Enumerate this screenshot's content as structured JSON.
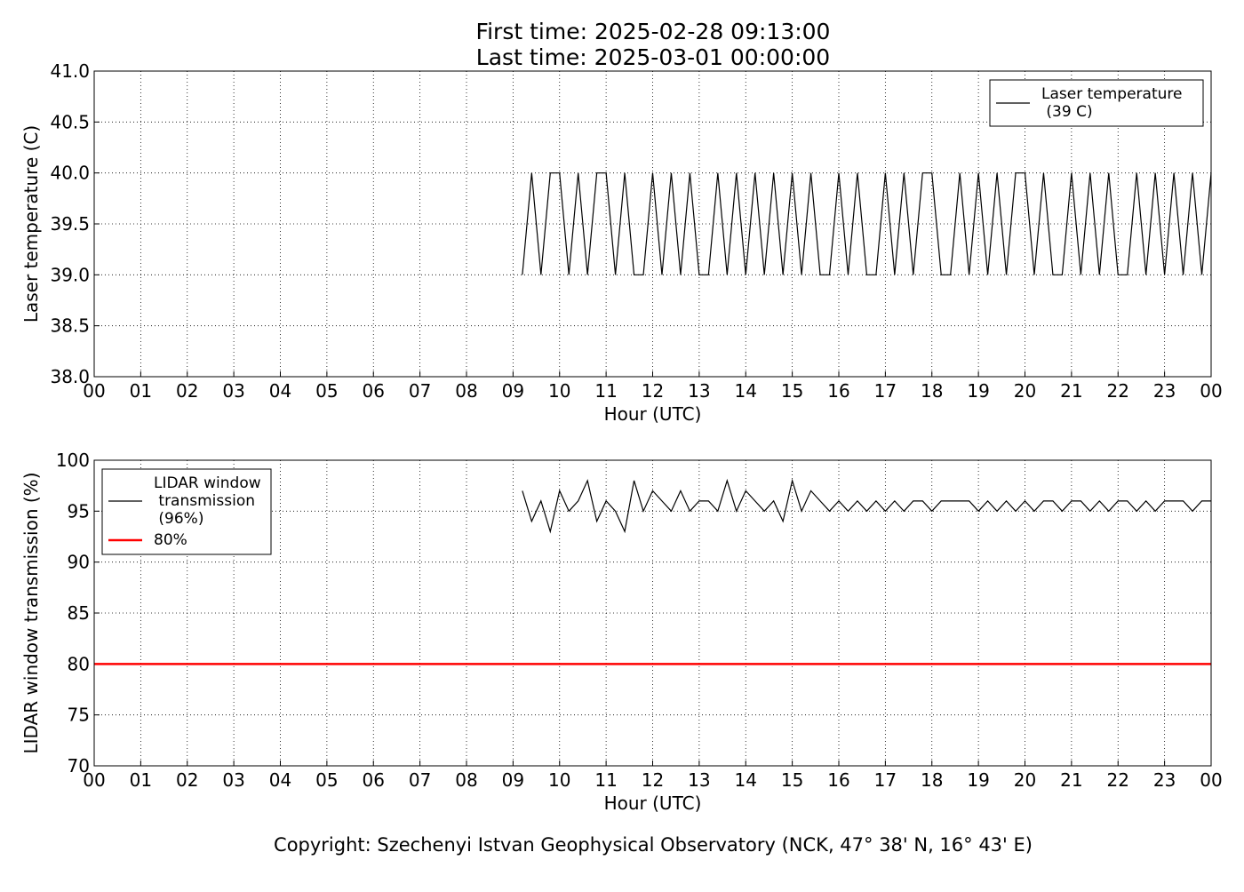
{
  "chart_data": [
    {
      "type": "line",
      "title": "First time: 2025-02-28 09:13:00",
      "subtitle": "Last time: 2025-03-01 00:00:00",
      "ylabel": "Laser temperature (C)",
      "xlabel": "Hour (UTC)",
      "xlim": [
        0,
        24
      ],
      "xticks": [
        {
          "value": 0,
          "label": "00"
        },
        {
          "value": 1,
          "label": "01"
        },
        {
          "value": 2,
          "label": "02"
        },
        {
          "value": 3,
          "label": "03"
        },
        {
          "value": 4,
          "label": "04"
        },
        {
          "value": 5,
          "label": "05"
        },
        {
          "value": 6,
          "label": "06"
        },
        {
          "value": 7,
          "label": "07"
        },
        {
          "value": 8,
          "label": "08"
        },
        {
          "value": 9,
          "label": "09"
        },
        {
          "value": 10,
          "label": "10"
        },
        {
          "value": 11,
          "label": "11"
        },
        {
          "value": 12,
          "label": "12"
        },
        {
          "value": 13,
          "label": "13"
        },
        {
          "value": 14,
          "label": "14"
        },
        {
          "value": 15,
          "label": "15"
        },
        {
          "value": 16,
          "label": "16"
        },
        {
          "value": 17,
          "label": "17"
        },
        {
          "value": 18,
          "label": "18"
        },
        {
          "value": 19,
          "label": "19"
        },
        {
          "value": 20,
          "label": "20"
        },
        {
          "value": 21,
          "label": "21"
        },
        {
          "value": 22,
          "label": "22"
        },
        {
          "value": 23,
          "label": "23"
        },
        {
          "value": 24,
          "label": "00"
        }
      ],
      "ylim": [
        38,
        41
      ],
      "yticks": [
        {
          "value": 38,
          "label": "38.0"
        },
        38.5,
        {
          "value": 39,
          "label": "39.0"
        },
        39.5,
        {
          "value": 40,
          "label": "40.0"
        },
        40.5,
        {
          "value": 41,
          "label": "41.0"
        }
      ],
      "grid": true,
      "legend": "upper right",
      "series": [
        {
          "name": "Laser temperature\n(39 C)",
          "color": "#000000",
          "x": [
            9.2,
            9.4,
            9.6,
            9.8,
            10,
            10.2,
            10.4,
            10.6,
            10.8,
            11,
            11.2,
            11.4,
            11.6,
            11.8,
            12,
            12.2,
            12.4,
            12.6,
            12.8,
            13,
            13.2,
            13.4,
            13.6,
            13.8,
            14,
            14.2,
            14.4,
            14.6,
            14.8,
            15,
            15.2,
            15.4,
            15.6,
            15.8,
            16,
            16.2,
            16.4,
            16.6,
            16.8,
            17,
            17.2,
            17.4,
            17.6,
            17.8,
            18,
            18.2,
            18.4,
            18.6,
            18.8,
            19,
            19.2,
            19.4,
            19.6,
            19.8,
            20,
            20.2,
            20.4,
            20.6,
            20.8,
            21,
            21.2,
            21.4,
            21.6,
            21.8,
            22,
            22.2,
            22.4,
            22.6,
            22.8,
            23,
            23.2,
            23.4,
            23.6,
            23.8,
            24
          ],
          "values": [
            39,
            40,
            39,
            40,
            40,
            39,
            40,
            39,
            40,
            40,
            39,
            40,
            39,
            39,
            40,
            39,
            40,
            39,
            40,
            39,
            39,
            40,
            39,
            40,
            39,
            40,
            39,
            40,
            39,
            40,
            39,
            40,
            39,
            39,
            40,
            39,
            40,
            39,
            39,
            40,
            39,
            40,
            39,
            40,
            40,
            39,
            39,
            40,
            39,
            40,
            39,
            40,
            39,
            40,
            40,
            39,
            40,
            39,
            39,
            40,
            39,
            40,
            39,
            40,
            39,
            39,
            40,
            39,
            40,
            39,
            40,
            39,
            40,
            39,
            40
          ]
        }
      ]
    },
    {
      "type": "line",
      "ylabel": "LIDAR window transmission (%)",
      "xlabel": "Hour (UTC)",
      "xlim": [
        0,
        24
      ],
      "xticks": [
        {
          "value": 0,
          "label": "00"
        },
        {
          "value": 1,
          "label": "01"
        },
        {
          "value": 2,
          "label": "02"
        },
        {
          "value": 3,
          "label": "03"
        },
        {
          "value": 4,
          "label": "04"
        },
        {
          "value": 5,
          "label": "05"
        },
        {
          "value": 6,
          "label": "06"
        },
        {
          "value": 7,
          "label": "07"
        },
        {
          "value": 8,
          "label": "08"
        },
        {
          "value": 9,
          "label": "09"
        },
        {
          "value": 10,
          "label": "10"
        },
        {
          "value": 11,
          "label": "11"
        },
        {
          "value": 12,
          "label": "12"
        },
        {
          "value": 13,
          "label": "13"
        },
        {
          "value": 14,
          "label": "14"
        },
        {
          "value": 15,
          "label": "15"
        },
        {
          "value": 16,
          "label": "16"
        },
        {
          "value": 17,
          "label": "17"
        },
        {
          "value": 18,
          "label": "18"
        },
        {
          "value": 19,
          "label": "19"
        },
        {
          "value": 20,
          "label": "20"
        },
        {
          "value": 21,
          "label": "21"
        },
        {
          "value": 22,
          "label": "22"
        },
        {
          "value": 23,
          "label": "23"
        },
        {
          "value": 24,
          "label": "00"
        }
      ],
      "ylim": [
        70,
        100
      ],
      "yticks": [
        70,
        75,
        80,
        85,
        90,
        95,
        100
      ],
      "grid": true,
      "legend": "upper left",
      "series": [
        {
          "name": "LIDAR window\ntransmission\n(96%)",
          "color": "#000000",
          "x": [
            9.2,
            9.4,
            9.6,
            9.8,
            10,
            10.2,
            10.4,
            10.6,
            10.8,
            11,
            11.2,
            11.4,
            11.6,
            11.8,
            12,
            12.2,
            12.4,
            12.6,
            12.8,
            13,
            13.2,
            13.4,
            13.6,
            13.8,
            14,
            14.2,
            14.4,
            14.6,
            14.8,
            15,
            15.2,
            15.4,
            15.6,
            15.8,
            16,
            16.2,
            16.4,
            16.6,
            16.8,
            17,
            17.2,
            17.4,
            17.6,
            17.8,
            18,
            18.2,
            18.4,
            18.6,
            18.8,
            19,
            19.2,
            19.4,
            19.6,
            19.8,
            20,
            20.2,
            20.4,
            20.6,
            20.8,
            21,
            21.2,
            21.4,
            21.6,
            21.8,
            22,
            22.2,
            22.4,
            22.6,
            22.8,
            23,
            23.2,
            23.4,
            23.6,
            23.8,
            24
          ],
          "values": [
            97,
            94,
            96,
            93,
            97,
            95,
            96,
            98,
            94,
            96,
            95,
            93,
            98,
            95,
            97,
            96,
            95,
            97,
            95,
            96,
            96,
            95,
            98,
            95,
            97,
            96,
            95,
            96,
            94,
            98,
            95,
            97,
            96,
            95,
            96,
            95,
            96,
            95,
            96,
            95,
            96,
            95,
            96,
            96,
            95,
            96,
            96,
            96,
            96,
            95,
            96,
            95,
            96,
            95,
            96,
            95,
            96,
            96,
            95,
            96,
            96,
            95,
            96,
            95,
            96,
            96,
            95,
            96,
            95,
            96,
            96,
            96,
            95,
            96,
            96
          ]
        },
        {
          "name": "80%",
          "color": "#ff0000",
          "x": [
            0,
            24
          ],
          "values": [
            80,
            80
          ]
        }
      ]
    }
  ],
  "copyright": "Copyright: Szechenyi Istvan Geophysical Observatory (NCK, 47° 38' N, 16° 43' E)"
}
